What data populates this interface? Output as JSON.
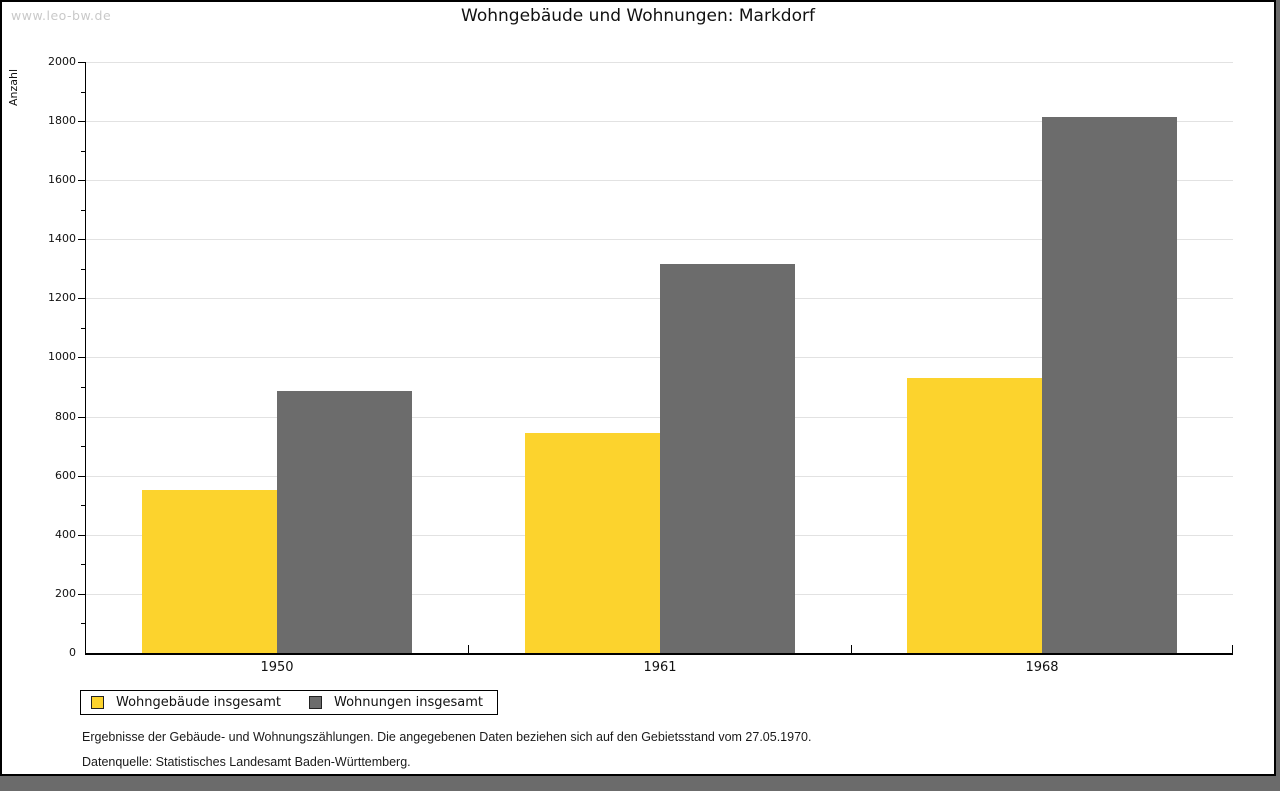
{
  "watermark": "www.leo-bw.de",
  "header": {
    "title": "Wohngebäude und Wohnungen: Markdorf"
  },
  "chart_data": {
    "type": "bar",
    "title": "Wohngebäude und Wohnungen: Markdorf",
    "xlabel": "",
    "ylabel": "Anzahl",
    "categories": [
      "1950",
      "1961",
      "1968"
    ],
    "series": [
      {
        "name": "Wohngebäude insgesamt",
        "color": "#fcd32d",
        "values": [
          550,
          745,
          930
        ]
      },
      {
        "name": "Wohnungen insgesamt",
        "color": "#6c6c6c",
        "values": [
          885,
          1315,
          1815
        ]
      }
    ],
    "ylim": [
      0,
      2000
    ],
    "ytick_step": 200,
    "yminor_step": 100,
    "grid": true,
    "gridline_color": "#e2e2e2",
    "legend_position": "bottom-left"
  },
  "footnotes": {
    "line1": "Ergebnisse der Gebäude- und Wohnungszählungen. Die angegebenen Daten beziehen sich auf den Gebietsstand vom 27.05.1970.",
    "line2": "Datenquelle: Statistisches Landesamt Baden-Württemberg."
  },
  "colors": {
    "page_background": "#6b6b6b",
    "canvas_background": "#ffffff",
    "axis": "#000000",
    "watermark": "#c9c9c9"
  }
}
